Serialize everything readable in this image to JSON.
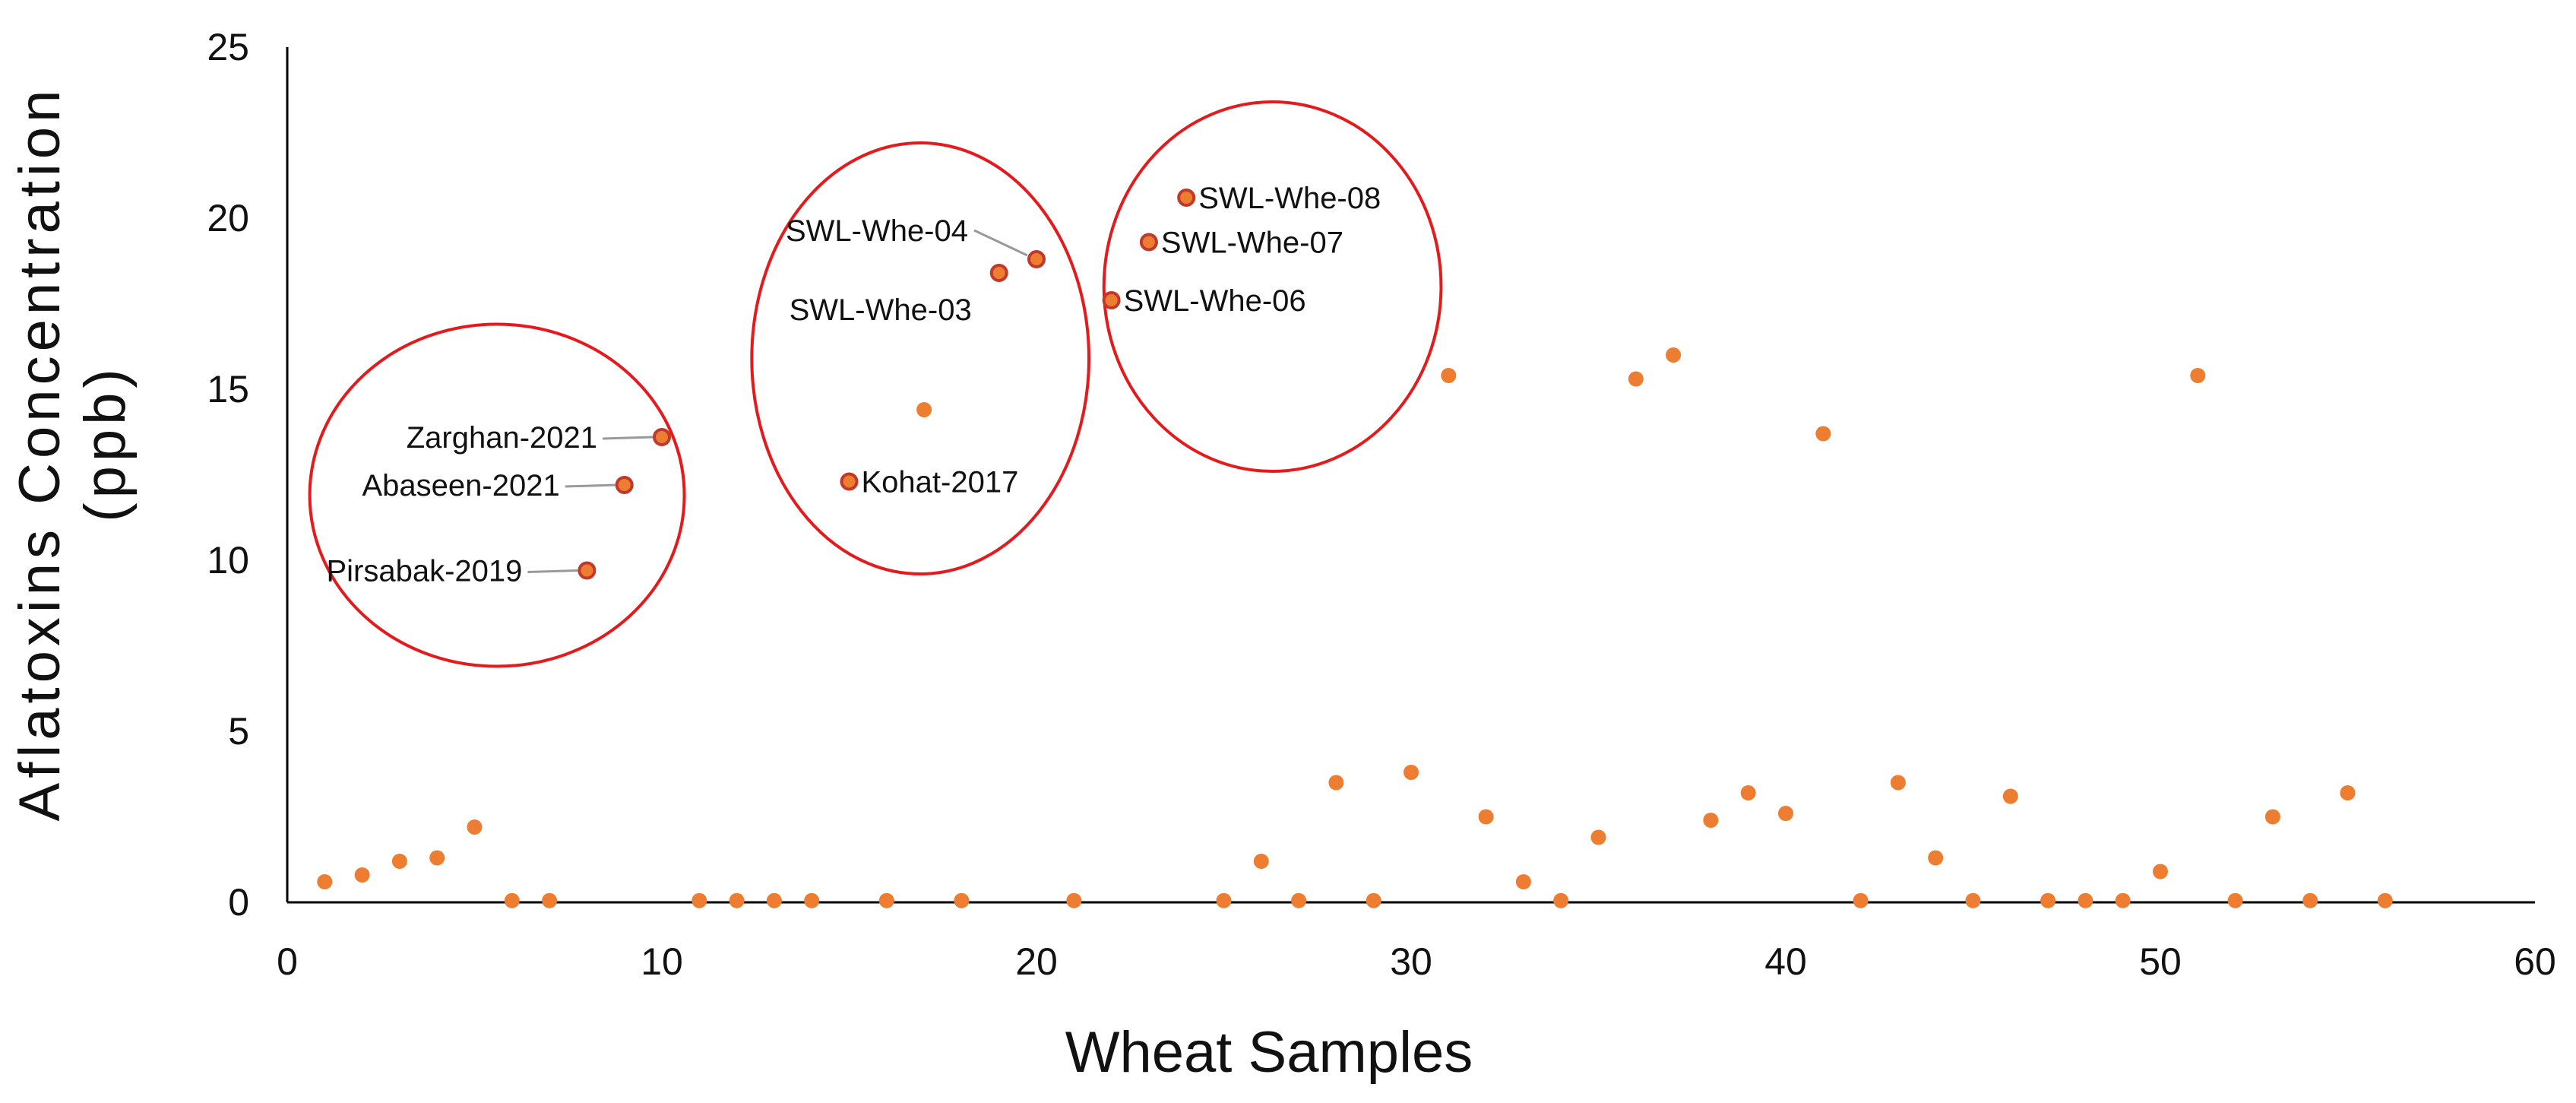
{
  "chart_data": {
    "type": "scatter",
    "title": "",
    "xlabel": "Wheat Samples",
    "ylabel_lines": [
      "Aflatoxins Concentration",
      "(ppb)"
    ],
    "xlim": [
      0,
      60
    ],
    "ylim": [
      0,
      25
    ],
    "xticks": [
      0,
      10,
      20,
      30,
      40,
      50,
      60
    ],
    "yticks": [
      0,
      5,
      10,
      15,
      20,
      25
    ],
    "grid": false,
    "marker_color": "#ed7d31",
    "marker_edge_color": "#c0392b",
    "circle_color": "#e41a1c",
    "leader_color": "#999999",
    "series": [
      {
        "name": "Aflatoxins",
        "points": [
          {
            "x": 1,
            "y": 0.6
          },
          {
            "x": 2,
            "y": 0.8
          },
          {
            "x": 3,
            "y": 1.2
          },
          {
            "x": 4,
            "y": 1.3
          },
          {
            "x": 5,
            "y": 2.2
          },
          {
            "x": 6,
            "y": 0.05
          },
          {
            "x": 7,
            "y": 0.05
          },
          {
            "x": 8,
            "y": 9.7
          },
          {
            "x": 9,
            "y": 12.2
          },
          {
            "x": 10,
            "y": 13.6
          },
          {
            "x": 11,
            "y": 0.05
          },
          {
            "x": 12,
            "y": 0.05
          },
          {
            "x": 13,
            "y": 0.05
          },
          {
            "x": 14,
            "y": 0.05
          },
          {
            "x": 15,
            "y": 12.3
          },
          {
            "x": 16,
            "y": 0.05
          },
          {
            "x": 17,
            "y": 14.4
          },
          {
            "x": 18,
            "y": 0.05
          },
          {
            "x": 19,
            "y": 18.4
          },
          {
            "x": 20,
            "y": 18.8
          },
          {
            "x": 21,
            "y": 0.05
          },
          {
            "x": 22,
            "y": 17.6
          },
          {
            "x": 23,
            "y": 19.3
          },
          {
            "x": 24,
            "y": 20.6
          },
          {
            "x": 25,
            "y": 0.05
          },
          {
            "x": 26,
            "y": 1.2
          },
          {
            "x": 27,
            "y": 0.05
          },
          {
            "x": 28,
            "y": 3.5
          },
          {
            "x": 29,
            "y": 0.05
          },
          {
            "x": 30,
            "y": 3.8
          },
          {
            "x": 31,
            "y": 15.4
          },
          {
            "x": 32,
            "y": 2.5
          },
          {
            "x": 33,
            "y": 0.6
          },
          {
            "x": 34,
            "y": 0.05
          },
          {
            "x": 35,
            "y": 1.9
          },
          {
            "x": 36,
            "y": 15.3
          },
          {
            "x": 37,
            "y": 16.0
          },
          {
            "x": 38,
            "y": 2.4
          },
          {
            "x": 39,
            "y": 3.2
          },
          {
            "x": 40,
            "y": 2.6
          },
          {
            "x": 41,
            "y": 13.7
          },
          {
            "x": 42,
            "y": 0.05
          },
          {
            "x": 43,
            "y": 3.5
          },
          {
            "x": 44,
            "y": 1.3
          },
          {
            "x": 45,
            "y": 0.05
          },
          {
            "x": 46,
            "y": 3.1
          },
          {
            "x": 47,
            "y": 0.05
          },
          {
            "x": 48,
            "y": 0.05
          },
          {
            "x": 49,
            "y": 0.05
          },
          {
            "x": 50,
            "y": 0.9
          },
          {
            "x": 51,
            "y": 15.4
          },
          {
            "x": 52,
            "y": 0.05
          },
          {
            "x": 53,
            "y": 2.5
          },
          {
            "x": 54,
            "y": 0.05
          },
          {
            "x": 55,
            "y": 3.2
          },
          {
            "x": 56,
            "y": 0.05
          }
        ]
      }
    ],
    "annotations": [
      {
        "text": "Zarghan-2021",
        "x": 10,
        "y": 13.6,
        "side": "left",
        "leader": true
      },
      {
        "text": "Abaseen-2021",
        "x": 9,
        "y": 12.2,
        "side": "left",
        "leader": true
      },
      {
        "text": "Pirsabak-2019",
        "x": 8,
        "y": 9.7,
        "side": "left",
        "leader": true
      },
      {
        "text": "Kohat-2017",
        "x": 15,
        "y": 12.3,
        "side": "right",
        "leader": false
      },
      {
        "text": "SWL-Whe-03",
        "x": 19,
        "y": 18.4,
        "side": "below-left",
        "leader": false
      },
      {
        "text": "SWL-Whe-04",
        "x": 20,
        "y": 18.8,
        "side": "upper-left",
        "leader": true
      },
      {
        "text": "SWL-Whe-06",
        "x": 22,
        "y": 17.6,
        "side": "right",
        "leader": false
      },
      {
        "text": "SWL-Whe-07",
        "x": 23,
        "y": 19.3,
        "side": "right",
        "leader": false
      },
      {
        "text": "SWL-Whe-08",
        "x": 24,
        "y": 20.6,
        "side": "right",
        "leader": false
      }
    ],
    "highlight_groups": [
      {
        "label": "group-1",
        "center_x": 5.6,
        "center_y": 11.9,
        "radius_x": 5.0,
        "radius_y": 5.0
      },
      {
        "label": "group-2",
        "center_x": 16.9,
        "center_y": 15.9,
        "radius_x": 4.5,
        "radius_y": 6.3
      },
      {
        "label": "group-3",
        "center_x": 26.3,
        "center_y": 18.0,
        "radius_x": 4.5,
        "radius_y": 5.4
      }
    ]
  }
}
